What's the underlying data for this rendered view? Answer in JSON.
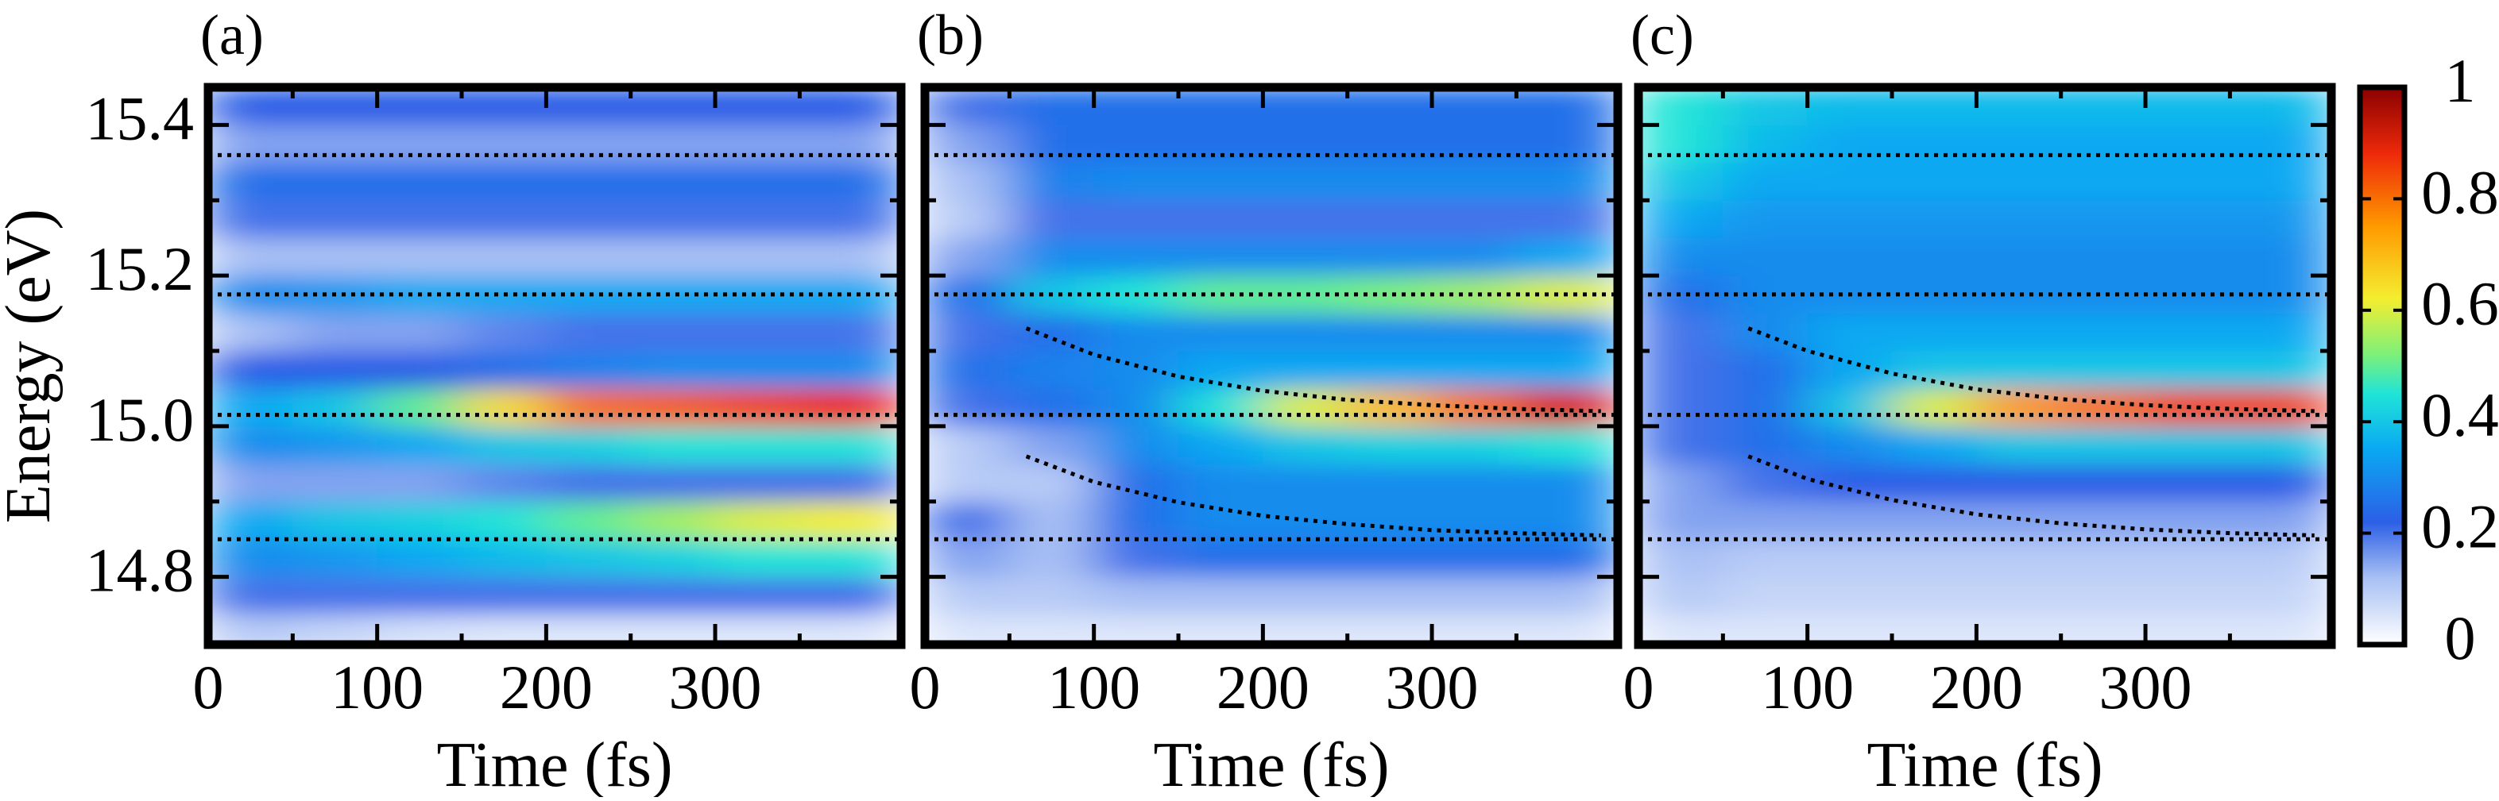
{
  "chart_data": [
    {
      "type": "heatmap",
      "label": "(a)",
      "xlabel": "Time (fs)",
      "ylabel": "Energy (eV)",
      "xlim": [
        0,
        410
      ],
      "ylim": [
        14.71,
        15.45
      ],
      "xticks": [
        0,
        100,
        200,
        300
      ],
      "xminorticks": [
        50,
        150,
        250,
        350
      ],
      "yticks": [
        {
          "value": 14.8,
          "label": "14.8"
        },
        {
          "value": 15,
          "label": "15.0"
        },
        {
          "value": 15.2,
          "label": "15.2"
        },
        {
          "value": 15.4,
          "label": "15.4"
        }
      ],
      "yminorticks": [
        14.9,
        15.1,
        15.3
      ],
      "ytick_labels": true,
      "hlines": [
        14.85,
        15.015,
        15.175,
        15.36
      ],
      "xbins": [
        0,
        50,
        100,
        150,
        200,
        250,
        300,
        350,
        410
      ],
      "ybins": [
        14.7,
        14.75,
        14.8,
        14.85,
        14.9,
        14.95,
        15,
        15.05,
        15.1,
        15.15,
        15.2,
        15.25,
        15.3,
        15.35,
        15.4,
        15.45
      ],
      "z": [
        [
          0.1,
          0.08,
          0.06,
          0.05,
          0.05,
          0.05,
          0.05,
          0.05
        ],
        [
          0.2,
          0.2,
          0.2,
          0.2,
          0.2,
          0.2,
          0.2,
          0.2
        ],
        [
          0.3,
          0.32,
          0.35,
          0.38,
          0.4,
          0.42,
          0.45,
          0.45
        ],
        [
          0.35,
          0.4,
          0.42,
          0.45,
          0.5,
          0.55,
          0.6,
          0.62
        ],
        [
          0.15,
          0.15,
          0.15,
          0.18,
          0.2,
          0.2,
          0.2,
          0.2
        ],
        [
          0.3,
          0.32,
          0.35,
          0.4,
          0.42,
          0.45,
          0.45,
          0.45
        ],
        [
          0.35,
          0.4,
          0.5,
          0.65,
          0.8,
          0.82,
          0.85,
          0.88
        ],
        [
          0.22,
          0.22,
          0.22,
          0.25,
          0.28,
          0.3,
          0.3,
          0.3
        ],
        [
          0.12,
          0.15,
          0.15,
          0.18,
          0.2,
          0.2,
          0.2,
          0.2
        ],
        [
          0.3,
          0.32,
          0.35,
          0.35,
          0.35,
          0.35,
          0.35,
          0.35
        ],
        [
          0.12,
          0.12,
          0.12,
          0.12,
          0.12,
          0.12,
          0.12,
          0.12
        ],
        [
          0.2,
          0.2,
          0.2,
          0.2,
          0.2,
          0.2,
          0.2,
          0.2
        ],
        [
          0.25,
          0.25,
          0.25,
          0.25,
          0.25,
          0.25,
          0.25,
          0.25
        ],
        [
          0.15,
          0.15,
          0.15,
          0.15,
          0.15,
          0.15,
          0.15,
          0.15
        ],
        [
          0.22,
          0.22,
          0.22,
          0.22,
          0.22,
          0.22,
          0.22,
          0.22
        ]
      ]
    },
    {
      "type": "heatmap",
      "label": "(b)",
      "xlabel": "Time (fs)",
      "xlim": [
        0,
        410
      ],
      "ylim": [
        14.71,
        15.45
      ],
      "xticks": [
        0,
        100,
        200,
        300
      ],
      "xminorticks": [
        50,
        150,
        250,
        350
      ],
      "yticks": [
        14.8,
        15,
        15.2,
        15.4
      ],
      "yminorticks": [
        14.9,
        15.1,
        15.3
      ],
      "ytick_labels": false,
      "hlines": [
        14.85,
        15.015,
        15.175,
        15.36
      ],
      "curves": [
        {
          "x": [
            60,
            100,
            150,
            200,
            250,
            300,
            350,
            400
          ],
          "y": [
            15.13,
            15.095,
            15.066,
            15.047,
            15.035,
            15.028,
            15.023,
            15.02
          ]
        },
        {
          "x": [
            60,
            100,
            150,
            200,
            250,
            300,
            350,
            400
          ],
          "y": [
            14.96,
            14.926,
            14.899,
            14.881,
            14.87,
            14.862,
            14.858,
            14.855
          ]
        }
      ],
      "xbins": [
        0,
        50,
        100,
        150,
        200,
        250,
        300,
        350,
        410
      ],
      "ybins": [
        14.7,
        14.75,
        14.8,
        14.85,
        14.9,
        14.95,
        15,
        15.05,
        15.1,
        15.15,
        15.2,
        15.25,
        15.3,
        15.35,
        15.4,
        15.45
      ],
      "z": [
        [
          0.05,
          0.05,
          0.05,
          0.05,
          0.05,
          0.05,
          0.05,
          0.05
        ],
        [
          0.1,
          0.1,
          0.12,
          0.12,
          0.12,
          0.12,
          0.12,
          0.12
        ],
        [
          0.15,
          0.12,
          0.2,
          0.25,
          0.25,
          0.25,
          0.25,
          0.25
        ],
        [
          0.2,
          0.12,
          0.25,
          0.3,
          0.3,
          0.3,
          0.3,
          0.3
        ],
        [
          0.1,
          0.1,
          0.25,
          0.3,
          0.3,
          0.3,
          0.3,
          0.3
        ],
        [
          0.1,
          0.15,
          0.3,
          0.35,
          0.4,
          0.42,
          0.42,
          0.45
        ],
        [
          0.2,
          0.25,
          0.3,
          0.45,
          0.6,
          0.7,
          0.8,
          0.9
        ],
        [
          0.25,
          0.28,
          0.3,
          0.35,
          0.35,
          0.35,
          0.35,
          0.35
        ],
        [
          0.2,
          0.25,
          0.3,
          0.3,
          0.3,
          0.3,
          0.3,
          0.3
        ],
        [
          0.25,
          0.4,
          0.45,
          0.5,
          0.5,
          0.52,
          0.55,
          0.6
        ],
        [
          0.15,
          0.3,
          0.3,
          0.3,
          0.3,
          0.3,
          0.3,
          0.35
        ],
        [
          0.1,
          0.2,
          0.2,
          0.2,
          0.2,
          0.2,
          0.2,
          0.2
        ],
        [
          0.12,
          0.28,
          0.3,
          0.3,
          0.3,
          0.3,
          0.3,
          0.3
        ],
        [
          0.15,
          0.25,
          0.25,
          0.25,
          0.25,
          0.25,
          0.25,
          0.25
        ],
        [
          0.2,
          0.25,
          0.25,
          0.25,
          0.25,
          0.25,
          0.25,
          0.25
        ]
      ]
    },
    {
      "type": "heatmap",
      "label": "(c)",
      "xlabel": "Time (fs)",
      "xlim": [
        0,
        410
      ],
      "ylim": [
        14.71,
        15.45
      ],
      "xticks": [
        0,
        100,
        200,
        300
      ],
      "xminorticks": [
        50,
        150,
        250,
        350
      ],
      "yticks": [
        14.8,
        15,
        15.2,
        15.4
      ],
      "yminorticks": [
        14.9,
        15.1,
        15.3
      ],
      "ytick_labels": false,
      "hlines": [
        14.85,
        15.015,
        15.175,
        15.36
      ],
      "curves": [
        {
          "x": [
            65,
            100,
            150,
            200,
            250,
            300,
            350,
            400
          ],
          "y": [
            15.13,
            15.1,
            15.07,
            15.049,
            15.036,
            15.028,
            15.023,
            15.02
          ]
        },
        {
          "x": [
            65,
            100,
            150,
            200,
            250,
            300,
            350,
            400
          ],
          "y": [
            14.96,
            14.93,
            14.902,
            14.883,
            14.871,
            14.863,
            14.858,
            14.855
          ]
        }
      ],
      "xbins": [
        0,
        50,
        100,
        150,
        200,
        250,
        300,
        350,
        410
      ],
      "ybins": [
        14.7,
        14.75,
        14.8,
        14.85,
        14.9,
        14.95,
        15,
        15.05,
        15.1,
        15.15,
        15.2,
        15.25,
        15.3,
        15.35,
        15.4,
        15.45
      ],
      "z": [
        [
          0.05,
          0.05,
          0.05,
          0.05,
          0.05,
          0.05,
          0.05,
          0.05
        ],
        [
          0.1,
          0.08,
          0.08,
          0.08,
          0.08,
          0.08,
          0.08,
          0.08
        ],
        [
          0.12,
          0.1,
          0.1,
          0.1,
          0.1,
          0.1,
          0.1,
          0.1
        ],
        [
          0.15,
          0.15,
          0.15,
          0.15,
          0.15,
          0.15,
          0.15,
          0.15
        ],
        [
          0.15,
          0.2,
          0.22,
          0.22,
          0.22,
          0.22,
          0.22,
          0.22
        ],
        [
          0.2,
          0.25,
          0.3,
          0.35,
          0.4,
          0.4,
          0.4,
          0.4
        ],
        [
          0.2,
          0.25,
          0.4,
          0.6,
          0.75,
          0.8,
          0.85,
          0.85
        ],
        [
          0.2,
          0.25,
          0.35,
          0.4,
          0.4,
          0.4,
          0.4,
          0.4
        ],
        [
          0.2,
          0.3,
          0.35,
          0.35,
          0.35,
          0.35,
          0.35,
          0.35
        ],
        [
          0.25,
          0.3,
          0.3,
          0.3,
          0.3,
          0.3,
          0.3,
          0.3
        ],
        [
          0.3,
          0.3,
          0.3,
          0.3,
          0.3,
          0.3,
          0.3,
          0.3
        ],
        [
          0.35,
          0.32,
          0.32,
          0.32,
          0.32,
          0.32,
          0.32,
          0.32
        ],
        [
          0.4,
          0.35,
          0.35,
          0.35,
          0.35,
          0.35,
          0.35,
          0.35
        ],
        [
          0.45,
          0.38,
          0.35,
          0.35,
          0.35,
          0.35,
          0.35,
          0.35
        ],
        [
          0.45,
          0.4,
          0.38,
          0.38,
          0.38,
          0.38,
          0.38,
          0.38
        ]
      ],
      "colorbar": {
        "lim": [
          0,
          1
        ],
        "ticks": [
          0,
          0.2,
          0.4,
          0.6,
          0.8,
          1
        ],
        "colormap": [
          [
            0,
            "#ffffff"
          ],
          [
            0.12,
            "#a8c0f4"
          ],
          [
            0.22,
            "#2c5fe6"
          ],
          [
            0.35,
            "#0aa8f2"
          ],
          [
            0.45,
            "#20e4d8"
          ],
          [
            0.52,
            "#7cf07a"
          ],
          [
            0.62,
            "#f4ee30"
          ],
          [
            0.75,
            "#ff9a00"
          ],
          [
            0.88,
            "#ee2a0a"
          ],
          [
            1,
            "#8a0000"
          ]
        ]
      }
    }
  ]
}
